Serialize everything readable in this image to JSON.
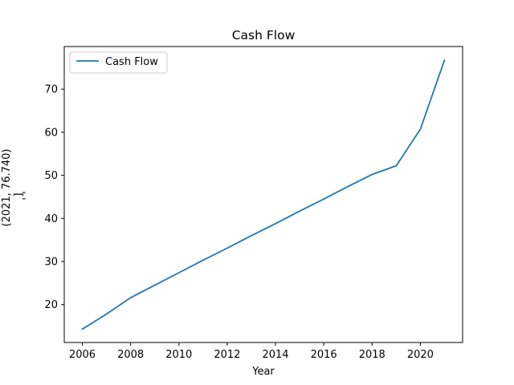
{
  "chart_data": {
    "type": "line",
    "title": "Cash Flow",
    "xlabel": "Year",
    "ylabel_lines": [
      "(2021, 76.740)",
      "]",
      "' '"
    ],
    "x": [
      2006,
      2007,
      2008,
      2009,
      2010,
      2011,
      2012,
      2013,
      2014,
      2015,
      2016,
      2017,
      2018,
      2019,
      2020,
      2021
    ],
    "series": [
      {
        "name": "Cash Flow",
        "color": "#1f77b4",
        "values": [
          14.3,
          17.8,
          21.6,
          24.5,
          27.4,
          30.3,
          33.1,
          36.0,
          38.8,
          41.7,
          44.5,
          47.4,
          50.2,
          52.2,
          60.7,
          76.74
        ]
      }
    ],
    "xticks": [
      2006,
      2008,
      2010,
      2012,
      2014,
      2016,
      2018,
      2020
    ],
    "yticks": [
      20,
      30,
      40,
      50,
      60,
      70
    ],
    "xlim": [
      2005.25,
      2021.75
    ],
    "ylim": [
      11.2,
      79.9
    ],
    "grid": false,
    "legend_position": "upper left"
  }
}
